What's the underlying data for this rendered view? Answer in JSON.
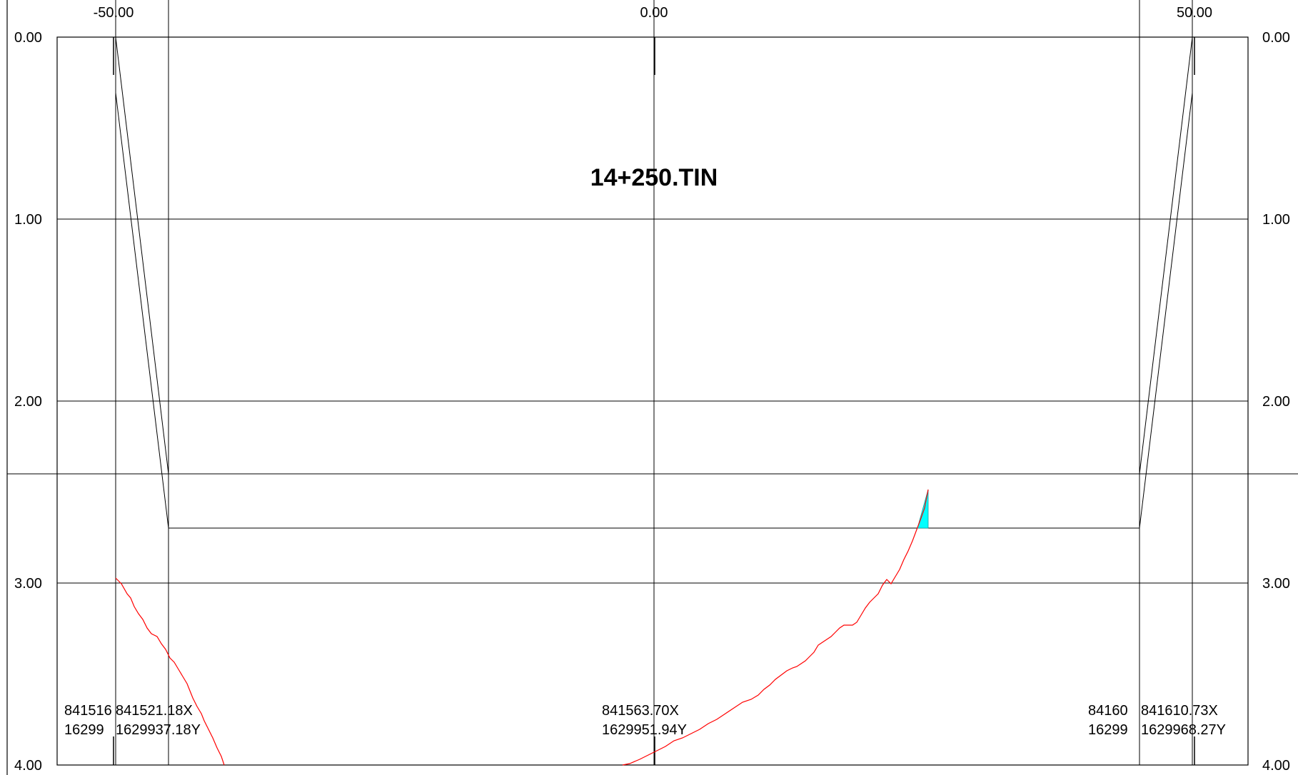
{
  "title": "14+250.TIN",
  "offset_ticks": [
    "-50.00",
    "0.00",
    "50.00"
  ],
  "depth_ticks": [
    "0.00",
    "1.00",
    "2.00",
    "3.00",
    "4.00"
  ],
  "coordinates": {
    "left_outer_x": "841516",
    "left_outer_y": "16299",
    "left_inner_x": "841521.18X",
    "left_inner_y": "1629937.18Y",
    "center_x": "841563.70X",
    "center_y": "1629951.94Y",
    "right_inner_x": "84160",
    "right_inner_y": "16299",
    "right_outer_x": "841610.73X",
    "right_outer_y": "1629968.27Y"
  },
  "colors": {
    "frame": "#000000",
    "ground_line": "#ff0000",
    "fill_area": "#00ffff"
  }
}
